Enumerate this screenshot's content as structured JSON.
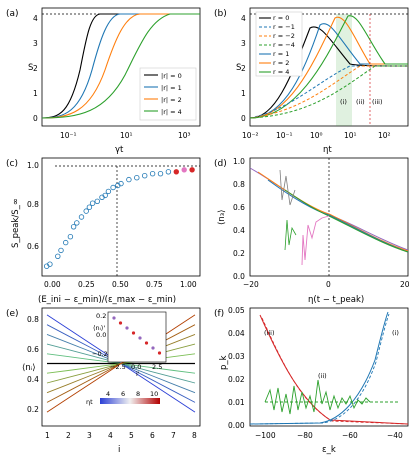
{
  "panels": {
    "a": {
      "label": "(a)",
      "ylabel": "S",
      "xlabel": "γt",
      "yticks": [
        "0",
        "1",
        "2",
        "3",
        "4"
      ],
      "xticks": [
        "10⁻¹",
        "10¹",
        "10³"
      ],
      "legend": [
        "|r| = 0",
        "|r| = 1",
        "|r| = 2",
        "|r| = 4"
      ]
    },
    "b": {
      "label": "(b)",
      "ylabel": "S",
      "xlabel": "ηt",
      "yticks": [
        "0",
        "1",
        "2",
        "3",
        "4"
      ],
      "xticks": [
        "10⁻²",
        "10⁻¹",
        "10⁰",
        "10¹",
        "10²"
      ],
      "legend": [
        "r = 0",
        "r = −1",
        "r = −2",
        "r = −4",
        "r = 1",
        "r = 2",
        "r = 4"
      ],
      "annotations": [
        "(i)",
        "(ii)",
        "(iii)"
      ]
    },
    "c": {
      "label": "(c)",
      "ylabel": "S_peak/S_∞",
      "xlabel": "(E_ini − ε_min)/(ε_max − ε_min)",
      "yticks": [
        "0.6",
        "0.8",
        "1.0"
      ],
      "xticks": [
        "0.00",
        "0.25",
        "0.50",
        "0.75",
        "1.00"
      ]
    },
    "d": {
      "label": "(d)",
      "ylabel": "⟨n₃⟩",
      "xlabel": "η(t − t_peak)",
      "yticks": [
        "0.0",
        "0.2",
        "0.4",
        "0.6",
        "0.8",
        "1.0"
      ],
      "xticks": [
        "−20",
        "0",
        "20"
      ]
    },
    "e": {
      "label": "(e)",
      "ylabel": "⟨nᵢ⟩",
      "xlabel": "i",
      "yticks": [
        "0.2",
        "0.4",
        "0.6",
        "0.8"
      ],
      "xticks": [
        "1",
        "2",
        "3",
        "4",
        "5",
        "6",
        "7",
        "8"
      ],
      "colorbar_label": "ηt",
      "colorbar_ticks": [
        "4",
        "6",
        "8",
        "10"
      ],
      "inset": {
        "ylabel": "⟨nᵢ⟩'",
        "xlabel": "i'",
        "yticks": [
          "0.2",
          "0.0",
          "−0.2"
        ],
        "xticks": [
          "−2.5",
          "0.0",
          "2.5"
        ]
      }
    },
    "f": {
      "label": "(f)",
      "ylabel": "p_k",
      "xlabel": "ε_k",
      "yticks": [
        "0.00",
        "0.01",
        "0.02",
        "0.03",
        "0.04",
        "0.05"
      ],
      "xticks": [
        "−100",
        "−80",
        "−60",
        "−40"
      ],
      "annotations": [
        "(iii)",
        "(ii)",
        "(i)"
      ]
    }
  },
  "colors": {
    "c0": "#000000",
    "c1": "#1f77b4",
    "c2": "#ff7f0e",
    "c4": "#2ca02c",
    "pink": "#e377c2",
    "purple": "#9467bd",
    "red": "#d62728"
  },
  "chart_data": [
    {
      "panel": "a",
      "type": "line",
      "xscale": "log",
      "xlim": [
        0.01,
        1000
      ],
      "ylim": [
        -0.2,
        4.4
      ],
      "series": [
        {
          "name": "|r| = 0",
          "rise": [
            0.1,
            3
          ],
          "sat": 4.2
        },
        {
          "name": "|r| = 1",
          "rise": [
            0.2,
            8
          ],
          "sat": 4.2
        },
        {
          "name": "|r| = 2",
          "rise": [
            0.4,
            30
          ],
          "sat": 4.2
        },
        {
          "name": "|r| = 4",
          "rise": [
            1,
            200
          ],
          "sat": 4.2
        }
      ]
    },
    {
      "panel": "b",
      "type": "line",
      "xscale": "log",
      "xlim": [
        0.01,
        200
      ],
      "ylim": [
        -0.2,
        4.4
      ],
      "series": [
        {
          "name": "r = 0",
          "peak_x": 1.2,
          "peak_y": 3.7
        },
        {
          "name": "r = 1",
          "peak_x": 3,
          "peak_y": 4.1
        },
        {
          "name": "r = 2",
          "peak_x": 6,
          "peak_y": 4.2
        },
        {
          "name": "r = 4",
          "peak_x": 12,
          "peak_y": 4.2
        }
      ]
    },
    {
      "panel": "c",
      "type": "scatter",
      "xlim": [
        0,
        1
      ],
      "ylim": [
        0.45,
        1.05
      ],
      "x": [
        0.03,
        0.05,
        0.1,
        0.12,
        0.15,
        0.18,
        0.2,
        0.22,
        0.25,
        0.28,
        0.3,
        0.32,
        0.35,
        0.38,
        0.4,
        0.42,
        0.45,
        0.48,
        0.5,
        0.55,
        0.6,
        0.65,
        0.7,
        0.75,
        0.8,
        0.85,
        0.9,
        0.95
      ],
      "y": [
        0.5,
        0.51,
        0.55,
        0.58,
        0.62,
        0.65,
        0.7,
        0.72,
        0.75,
        0.78,
        0.8,
        0.82,
        0.83,
        0.85,
        0.86,
        0.88,
        0.9,
        0.91,
        0.92,
        0.94,
        0.95,
        0.96,
        0.97,
        0.97,
        0.98,
        0.98,
        0.99,
        0.99
      ]
    },
    {
      "panel": "f",
      "type": "line",
      "xlim": [
        -105,
        -35
      ],
      "ylim": [
        0,
        0.05
      ]
    }
  ]
}
